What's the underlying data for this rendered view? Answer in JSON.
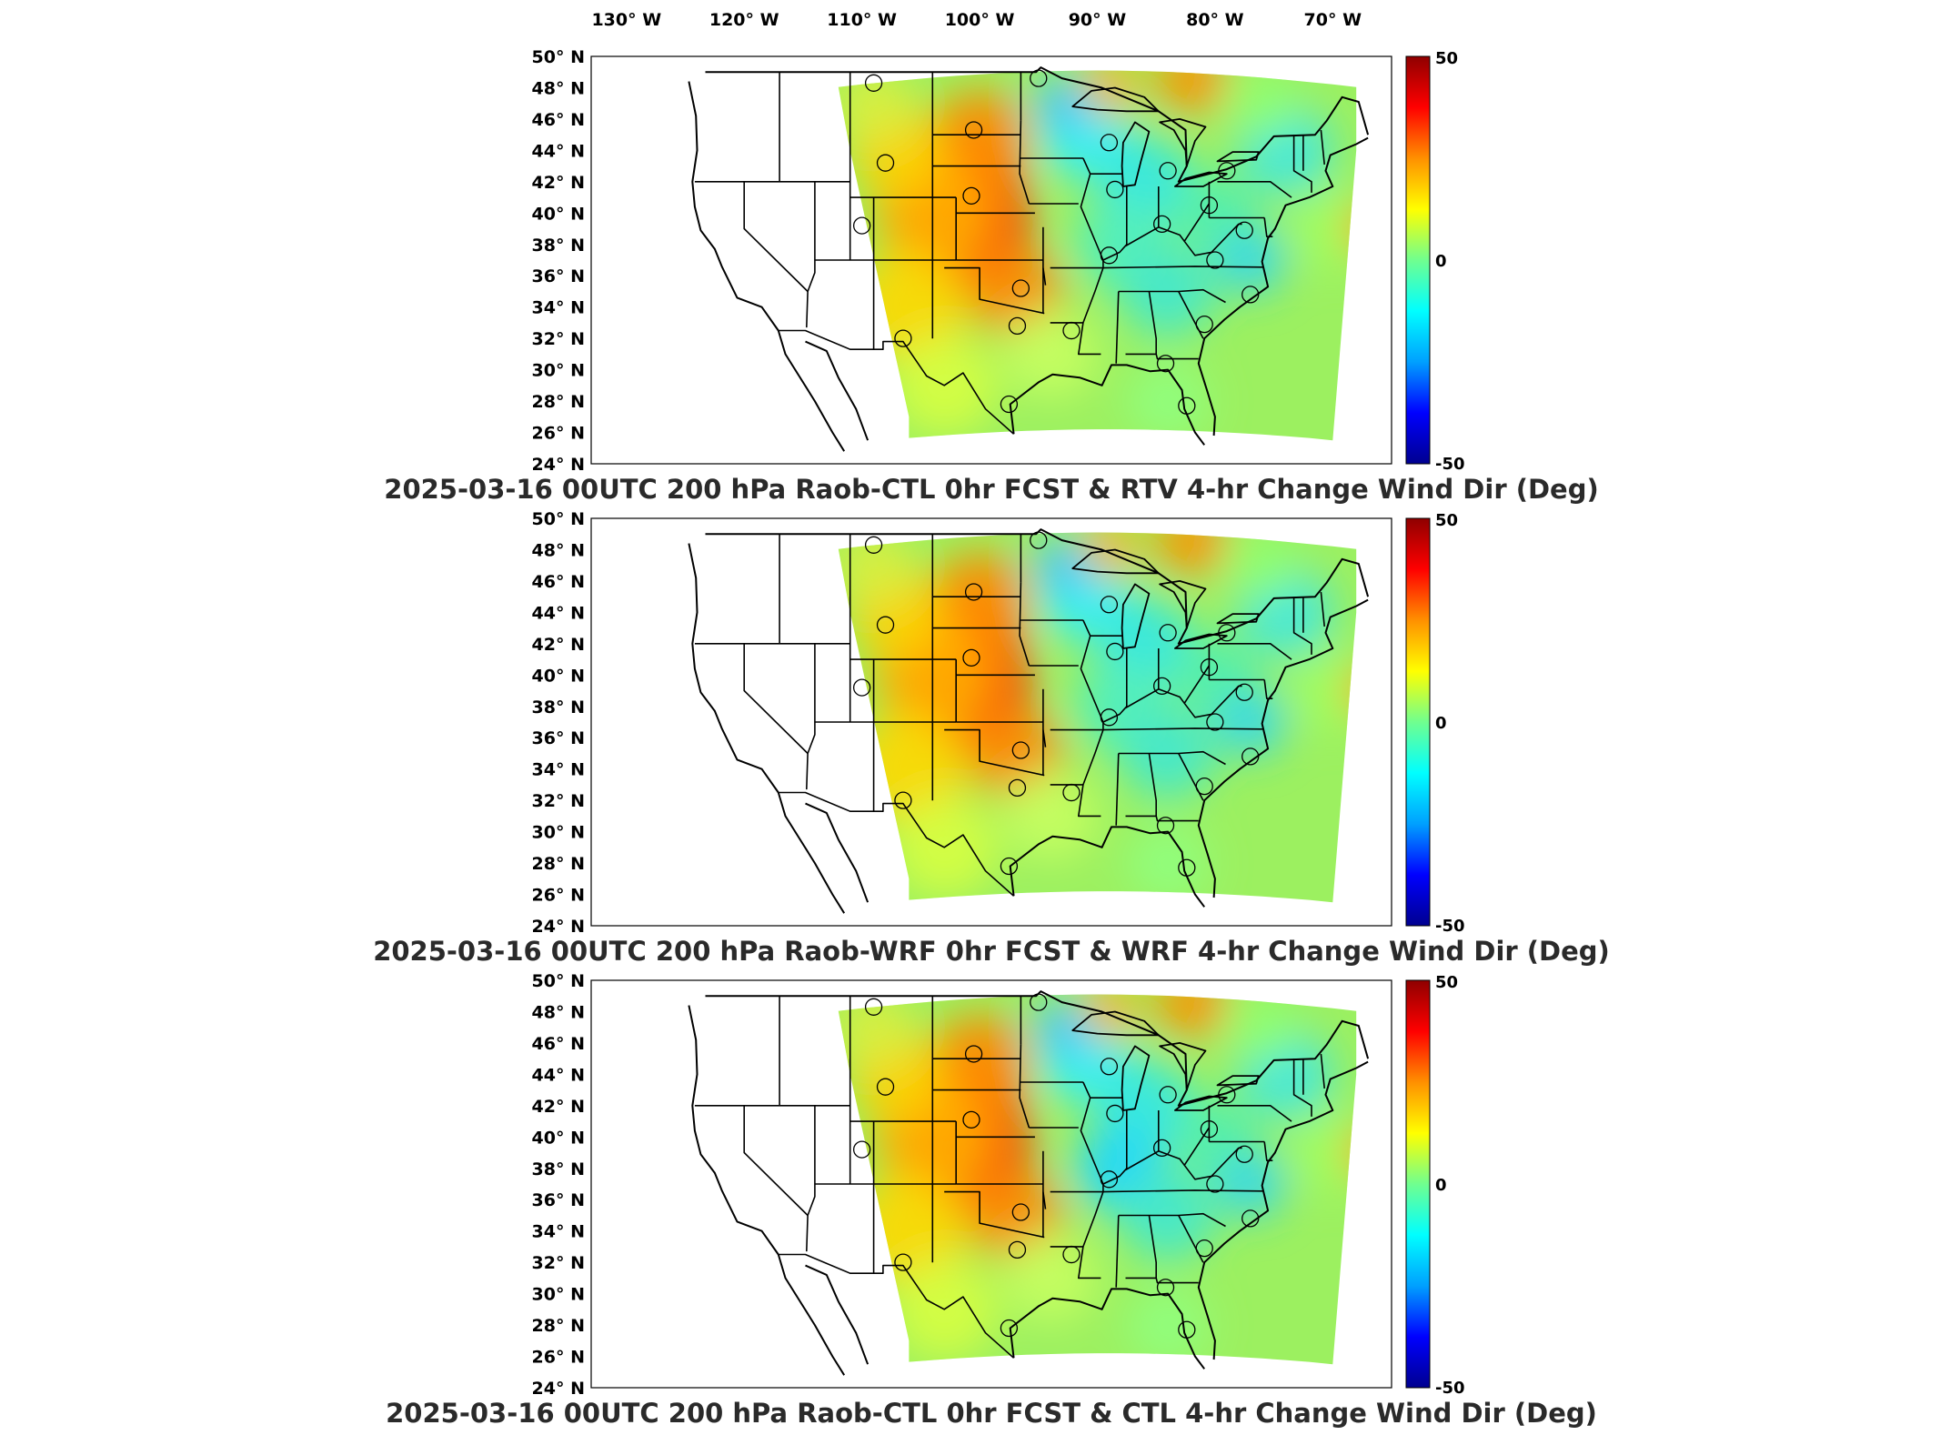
{
  "figure": {
    "lon_ticks": [
      "130° W",
      "120° W",
      "110° W",
      "100° W",
      "90° W",
      "80° W",
      "70° W"
    ],
    "lat_ticks": [
      "50° N",
      "48° N",
      "46° N",
      "44° N",
      "42° N",
      "40° N",
      "38° N",
      "36° N",
      "34° N",
      "32° N",
      "30° N",
      "28° N",
      "26° N",
      "24° N"
    ],
    "colorbar": {
      "max": "50",
      "mid": "0",
      "min": "-50",
      "stops": [
        "#00008f",
        "#0000ff",
        "#00a0ff",
        "#00ffff",
        "#70ff8f",
        "#ffff00",
        "#ff9000",
        "#ff0000",
        "#8f0000"
      ]
    },
    "panels": [
      {
        "title": "2025-03-16 00UTC 200 hPa Raob-CTL 0hr FCST & RTV 4-hr Change Wind Dir (Deg)"
      },
      {
        "title": "2025-03-16 00UTC 200 hPa Raob-WRF 0hr FCST & WRF 4-hr Change Wind Dir (Deg)"
      },
      {
        "title": "2025-03-16 00UTC 200 hPa Raob-CTL 0hr FCST & CTL 4-hr Change Wind Dir (Deg)"
      }
    ]
  },
  "map_data": {
    "type": "gridded-field-map",
    "variable": "Change Wind Dir (Deg)",
    "level": "200 hPa",
    "valid_time": "2025-03-16 00UTC",
    "color_range": [
      -50,
      50
    ],
    "stations": [
      {
        "lon": -109,
        "lat": 48.3
      },
      {
        "lon": -95,
        "lat": 48.6
      },
      {
        "lon": -100.5,
        "lat": 45.3
      },
      {
        "lon": -108,
        "lat": 43.2
      },
      {
        "lon": -100.7,
        "lat": 41.1
      },
      {
        "lon": -89,
        "lat": 44.5
      },
      {
        "lon": -88.5,
        "lat": 41.5
      },
      {
        "lon": -84,
        "lat": 42.7
      },
      {
        "lon": -79,
        "lat": 42.7
      },
      {
        "lon": -110,
        "lat": 39.2
      },
      {
        "lon": -89,
        "lat": 37.3
      },
      {
        "lon": -84.5,
        "lat": 39.3
      },
      {
        "lon": -80.5,
        "lat": 40.5
      },
      {
        "lon": -77.5,
        "lat": 38.9
      },
      {
        "lon": -80,
        "lat": 37.0
      },
      {
        "lon": -96.5,
        "lat": 35.2
      },
      {
        "lon": -96.8,
        "lat": 32.8
      },
      {
        "lon": -106.5,
        "lat": 32.0
      },
      {
        "lon": -92.2,
        "lat": 32.5
      },
      {
        "lon": -84.2,
        "lat": 30.4
      },
      {
        "lon": -80.9,
        "lat": 32.9
      },
      {
        "lon": -77.0,
        "lat": 34.8
      },
      {
        "lon": -97.5,
        "lat": 27.8
      },
      {
        "lon": -82.4,
        "lat": 27.7
      }
    ]
  }
}
